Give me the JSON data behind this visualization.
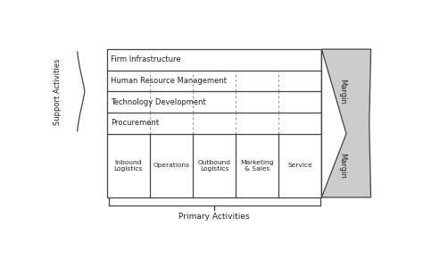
{
  "fig_width": 4.74,
  "fig_height": 2.91,
  "dpi": 100,
  "bg_color": "#ffffff",
  "support_rows": [
    {
      "label": "Firm Infrastructure",
      "dashed": false
    },
    {
      "label": "Human Resource Management",
      "dashed": true
    },
    {
      "label": "Technology Development",
      "dashed": true
    },
    {
      "label": "Procurement",
      "dashed": true
    }
  ],
  "primary_cols": [
    {
      "label": "Inbound\nLogistics"
    },
    {
      "label": "Operations"
    },
    {
      "label": "Outbound\nLogistics"
    },
    {
      "label": "Marketing\n& Sales"
    },
    {
      "label": "Service"
    }
  ],
  "support_label": "Support Activities",
  "primary_label": "Primary Activities",
  "margin_label": "Margin",
  "border_color": "#444444",
  "text_color": "#222222",
  "margin_fill": "#cccccc",
  "margin_fill2": "#bbbbbb"
}
